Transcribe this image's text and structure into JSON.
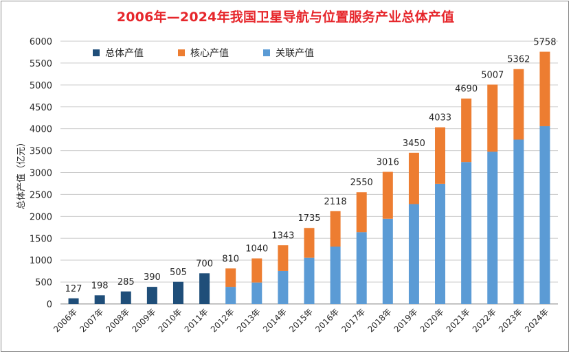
{
  "chart_data": {
    "type": "bar",
    "title": "2006年—2024年我国卫星导航与位置服务产业总体产值",
    "ylabel": "总体产值（亿元）",
    "xlabel": "",
    "ylim": [
      0,
      6000
    ],
    "yticks": [
      0,
      500,
      1000,
      1500,
      2000,
      2500,
      3000,
      3500,
      4000,
      4500,
      5000,
      5500,
      6000
    ],
    "grid": true,
    "legend_position": "top-left",
    "categories": [
      "2006年",
      "2007年",
      "2008年",
      "2009年",
      "2010年",
      "2011年",
      "2012年",
      "2013年",
      "2014年",
      "2015年",
      "2016年",
      "2017年",
      "2018年",
      "2019年",
      "2020年",
      "2021年",
      "2022年",
      "2023年",
      "2024年"
    ],
    "series": [
      {
        "name": "总体产值",
        "color": "#1f4e79",
        "values": [
          127,
          198,
          285,
          390,
          505,
          700,
          null,
          null,
          null,
          null,
          null,
          null,
          null,
          null,
          null,
          null,
          null,
          null,
          null
        ]
      },
      {
        "name": "核心产值",
        "color": "#ed7d31",
        "values": [
          null,
          null,
          null,
          null,
          null,
          null,
          420,
          550,
          590,
          680,
          810,
          910,
          1070,
          1170,
          1290,
          1450,
          1530,
          1610,
          1700
        ]
      },
      {
        "name": "关联产值",
        "color": "#5b9bd5",
        "values": [
          null,
          null,
          null,
          null,
          null,
          null,
          390,
          490,
          753,
          1055,
          1308,
          1640,
          1946,
          2280,
          2743,
          3240,
          3477,
          3752,
          4058
        ]
      }
    ],
    "totals": [
      127,
      198,
      285,
      390,
      505,
      700,
      810,
      1040,
      1343,
      1735,
      2118,
      2550,
      3016,
      3450,
      4033,
      4690,
      5007,
      5362,
      5758
    ]
  }
}
